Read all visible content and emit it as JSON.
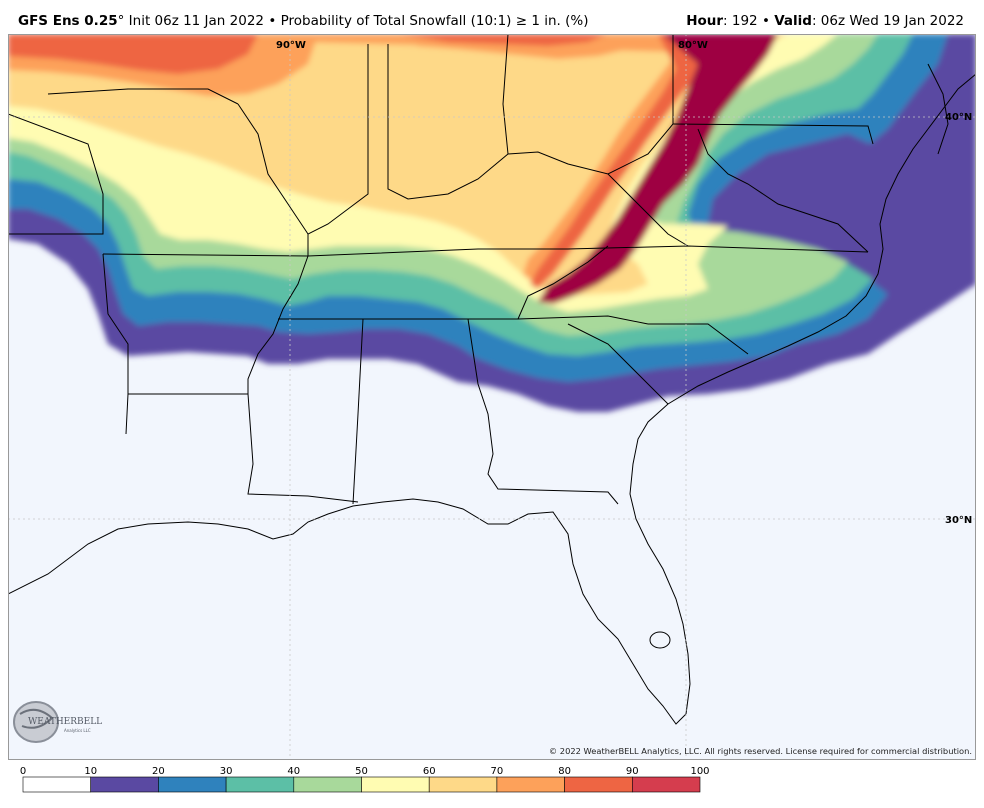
{
  "header": {
    "model": "GFS Ens 0.25",
    "degree_symbol": "°",
    "init": "Init 06z 11 Jan 2022",
    "bullet": "•",
    "product": "Probability of Total Snowfall (10:1) ≥ 1 in. (%)",
    "hour_label": "Hour",
    "hour_value": ": 192",
    "valid_label": "Valid",
    "valid_value": ": 06z Wed 19 Jan 2022"
  },
  "map": {
    "lon_labels": [
      "90°W",
      "80°W"
    ],
    "lat_labels": [
      "40°N",
      "30°N"
    ],
    "copyright": "© 2022 WeatherBELL Analytics, LLC. All rights reserved. License required for commercial distribution.",
    "logo_text": "WEATHERBELL",
    "logo_subtext": "Analytics LLC",
    "ocean_color": "#f2f6fd",
    "border_color": "#000000",
    "grid_color": "#c8c8c8"
  },
  "legend": {
    "ticks": [
      "0",
      "10",
      "20",
      "30",
      "40",
      "50",
      "60",
      "70",
      "80",
      "90",
      "100"
    ],
    "colors": [
      "#ffffff",
      "#5a49a2",
      "#2f82bd",
      "#5cbfa6",
      "#a8d99b",
      "#fffcb2",
      "#fed988",
      "#fda15a",
      "#ee6543",
      "#d53d4e",
      "#9e0142"
    ]
  }
}
